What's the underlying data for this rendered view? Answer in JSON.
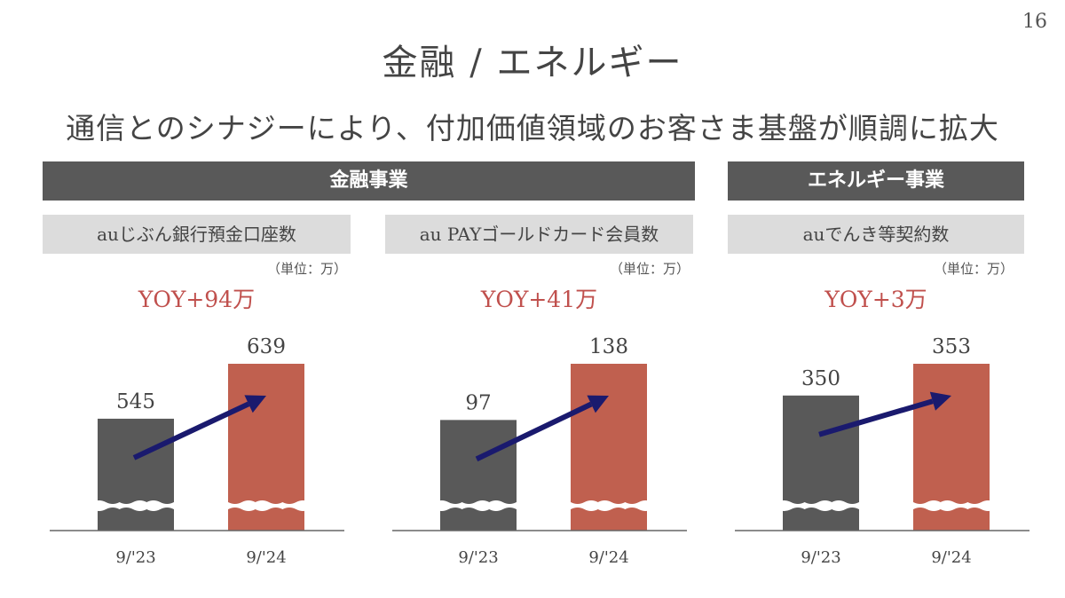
{
  "page_number": "16",
  "title": "金融 / エネルギー",
  "subtitle": "通信とのシナジーにより、付加価値領域のお客さま基盤が順調に拡大",
  "sections": [
    {
      "label": "金融事業"
    },
    {
      "label": "エネルギー事業"
    }
  ],
  "colors": {
    "prev": "#595959",
    "curr": "#c0604f",
    "arrow": "#1a1a6e",
    "yoy": "#c0504d"
  },
  "chart_data": [
    {
      "type": "bar",
      "title": "auじぶん銀行預金口座数",
      "unit": "（単位：万）",
      "yoy": "YOY+94万",
      "categories": [
        "9/'23",
        "9/'24"
      ],
      "values": [
        545,
        639
      ],
      "value_labels": [
        "545",
        "639"
      ],
      "axis_break": true
    },
    {
      "type": "bar",
      "title": "au PAYゴールドカード会員数",
      "unit": "（単位：万）",
      "yoy": "YOY+41万",
      "categories": [
        "9/'23",
        "9/'24"
      ],
      "values": [
        97,
        138
      ],
      "value_labels": [
        "97",
        "138"
      ],
      "axis_break": true
    },
    {
      "type": "bar",
      "title": "auでんき等契約数",
      "unit": "（単位：万）",
      "yoy": "YOY+3万",
      "categories": [
        "9/'23",
        "9/'24"
      ],
      "values": [
        350,
        353
      ],
      "value_labels": [
        "350",
        "353"
      ],
      "axis_break": true
    }
  ]
}
